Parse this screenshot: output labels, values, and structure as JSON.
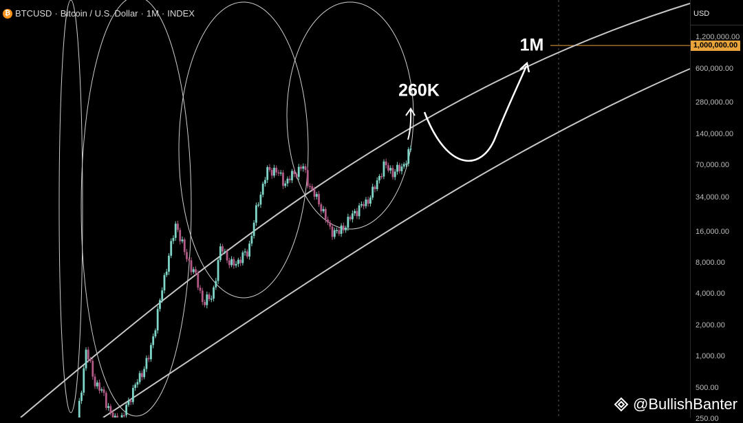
{
  "header": {
    "coin_icon": "bitcoin-icon",
    "symbol": "BTCUSD",
    "sep1": "·",
    "name": "Bitcoin / U.S. Dollar",
    "sep2": "·",
    "interval": "1M",
    "sep3": "·",
    "source": "INDEX"
  },
  "price_axis": {
    "currency": "USD",
    "scale": "log",
    "ticks": [
      "1,200,000.00",
      "600,000.00",
      "280,000.00",
      "140,000.00",
      "70,000.00",
      "34,000.00",
      "16,000.00",
      "8,000.00",
      "4,000.00",
      "2,000.00",
      "1,000.00",
      "500.00",
      "250.00"
    ],
    "tick_values": [
      1200000,
      600000,
      280000,
      140000,
      70000,
      34000,
      16000,
      8000,
      4000,
      2000,
      1000,
      500,
      250
    ],
    "highlight_label": "1,000,000.00",
    "highlight_value": 1000000,
    "highlight_color": "#e8a33a"
  },
  "annotations": {
    "target_1": {
      "label": "260K",
      "value": 260000
    },
    "target_2": {
      "label": "1M",
      "value": 1000000
    }
  },
  "watermark": {
    "icon": "binance-diamond-icon",
    "text": "@BullishBanter"
  },
  "colors": {
    "background": "#000000",
    "bull": "#7fd6c8",
    "bear": "#b35a86",
    "channel": "#c8c8c8"
  },
  "chart_data": {
    "type": "candlestick",
    "title": "BTCUSD · Bitcoin / U.S. Dollar · 1M · INDEX",
    "yscale": "log",
    "ylim": [
      230,
      1500000
    ],
    "series": [
      {
        "name": "BTCUSD",
        "approx_path_usd": [
          230,
          1150,
          560,
          420,
          240,
          250,
          430,
          650,
          1000,
          2800,
          8000,
          19500,
          9500,
          6500,
          3300,
          3800,
          12000,
          7500,
          8500,
          10500,
          29000,
          60000,
          64000,
          47000,
          57000,
          69000,
          40000,
          29000,
          17000,
          15500,
          20000,
          26000,
          30000,
          42000,
          70000,
          60000,
          66000,
          99000
        ]
      }
    ]
  }
}
